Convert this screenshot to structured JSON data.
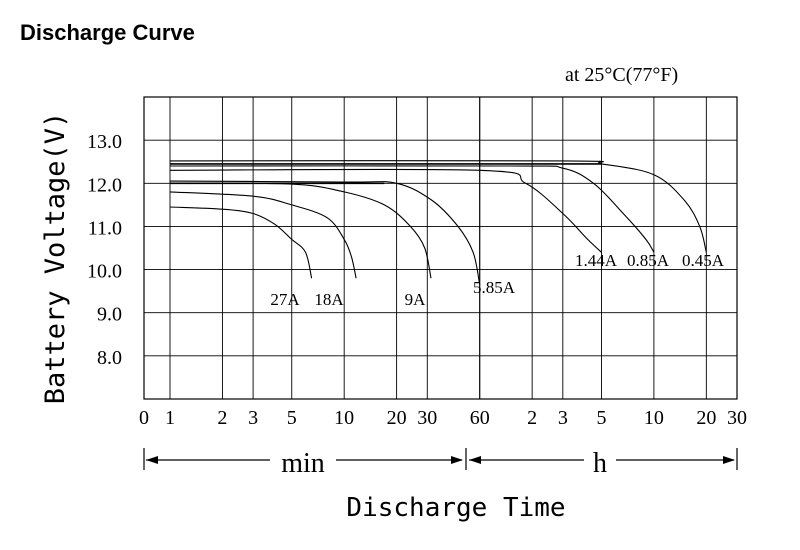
{
  "heading": "Discharge Curve",
  "chart_data": {
    "type": "line",
    "title": "",
    "condition": "at 25°C(77°F)",
    "ylabel": "Battery Voltage(V)",
    "xlabel": "Discharge Time",
    "x_unit_min": "min",
    "x_unit_h": "h",
    "x_scale": "log",
    "ylim": [
      7,
      14
    ],
    "grid": true,
    "y_ticks": [
      {
        "value": 8,
        "label": "8.0"
      },
      {
        "value": 9,
        "label": "9.0"
      },
      {
        "value": 10,
        "label": "10.0"
      },
      {
        "value": 11,
        "label": "11.0"
      },
      {
        "value": 12,
        "label": "12.0"
      },
      {
        "value": 13,
        "label": "13.0"
      }
    ],
    "x_ticks": [
      {
        "label": "0",
        "minutes": 0
      },
      {
        "label": "1",
        "minutes": 1
      },
      {
        "label": "2",
        "minutes": 2
      },
      {
        "label": "3",
        "minutes": 3
      },
      {
        "label": "5",
        "minutes": 5
      },
      {
        "label": "10",
        "minutes": 10
      },
      {
        "label": "20",
        "minutes": 20
      },
      {
        "label": "30",
        "minutes": 30
      },
      {
        "label": "60",
        "minutes": 60
      },
      {
        "label": "2",
        "minutes": 120
      },
      {
        "label": "3",
        "minutes": 180
      },
      {
        "label": "5",
        "minutes": 300
      },
      {
        "label": "10",
        "minutes": 600
      },
      {
        "label": "20",
        "minutes": 1200
      },
      {
        "label": "30",
        "minutes": 1800
      }
    ],
    "series": [
      {
        "name": "27A",
        "points": [
          [
            1,
            11.45
          ],
          [
            2,
            11.4
          ],
          [
            3,
            11.3
          ],
          [
            4,
            11.05
          ],
          [
            5,
            10.7
          ],
          [
            6,
            10.4
          ],
          [
            6.5,
            9.8
          ]
        ]
      },
      {
        "name": "18A",
        "points": [
          [
            1,
            11.8
          ],
          [
            3,
            11.7
          ],
          [
            5,
            11.5
          ],
          [
            8,
            11.2
          ],
          [
            10,
            10.7
          ],
          [
            11,
            10.3
          ],
          [
            11.7,
            9.8
          ]
        ]
      },
      {
        "name": "9A",
        "points": [
          [
            1,
            12.0
          ],
          [
            5,
            11.98
          ],
          [
            10,
            11.8
          ],
          [
            17,
            11.5
          ],
          [
            24,
            11.0
          ],
          [
            29,
            10.5
          ],
          [
            31.5,
            9.8
          ]
        ]
      },
      {
        "name": "5.85A",
        "points": [
          [
            1,
            12.05
          ],
          [
            10,
            12.03
          ],
          [
            20,
            12.0
          ],
          [
            32,
            11.6
          ],
          [
            45,
            11.0
          ],
          [
            55,
            10.4
          ],
          [
            60,
            9.65
          ]
        ]
      },
      {
        "name": "1.44A",
        "points": [
          [
            1,
            12.3
          ],
          [
            60,
            12.3
          ],
          [
            110,
            12.0
          ],
          [
            180,
            11.3
          ],
          [
            250,
            10.7
          ],
          [
            300,
            10.4
          ]
        ]
      },
      {
        "name": "0.85A",
        "points": [
          [
            1,
            12.4
          ],
          [
            90,
            12.4
          ],
          [
            180,
            12.35
          ],
          [
            270,
            12.0
          ],
          [
            400,
            11.3
          ],
          [
            540,
            10.7
          ],
          [
            600,
            10.4
          ]
        ]
      },
      {
        "name": "0.45A",
        "points": [
          [
            1,
            12.52
          ],
          [
            180,
            12.52
          ],
          [
            300,
            12.45
          ],
          [
            600,
            12.2
          ],
          [
            900,
            11.6
          ],
          [
            1100,
            11.0
          ],
          [
            1200,
            10.4
          ]
        ]
      },
      {
        "name": "",
        "points": [
          [
            1,
            12.45
          ],
          [
            300,
            12.45
          ]
        ]
      },
      {
        "name": "",
        "points": [
          [
            1,
            12.0
          ],
          [
            17,
            12.0
          ]
        ]
      }
    ]
  }
}
